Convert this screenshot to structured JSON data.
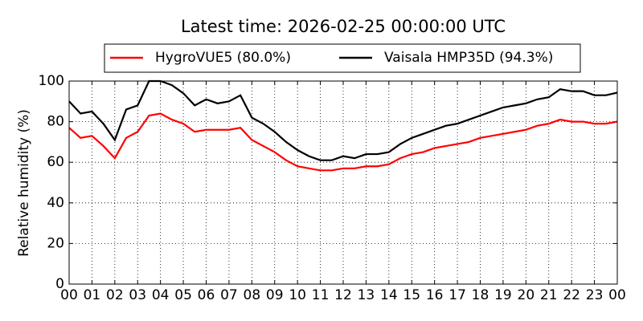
{
  "chart_data": {
    "type": "line",
    "title": "Latest time: 2026-02-25 00:00:00 UTC",
    "ylabel": "Relative humidity (%)",
    "x": [
      0,
      0.5,
      1,
      1.5,
      2,
      2.5,
      3,
      3.5,
      4,
      4.5,
      5,
      5.5,
      6,
      6.5,
      7,
      7.5,
      8,
      8.5,
      9,
      9.5,
      10,
      10.5,
      11,
      11.5,
      12,
      12.5,
      13,
      13.5,
      14,
      14.5,
      15,
      15.5,
      16,
      16.5,
      17,
      17.5,
      18,
      18.5,
      19,
      19.5,
      20,
      20.5,
      21,
      21.5,
      22,
      22.5,
      23,
      23.5,
      24
    ],
    "series": [
      {
        "name": "HygroVUE5 (80.0%)",
        "color": "#ff0000",
        "values": [
          77,
          72,
          73,
          68,
          62,
          72,
          75,
          83,
          84,
          81,
          79,
          75,
          76,
          76,
          76,
          77,
          71,
          68,
          65,
          61,
          58,
          57,
          56,
          56,
          57,
          57,
          58,
          58,
          59,
          62,
          64,
          65,
          67,
          68,
          69,
          70,
          72,
          73,
          74,
          75,
          76,
          78,
          79,
          81,
          80,
          80,
          79,
          79,
          80
        ]
      },
      {
        "name": "Vaisala HMP35D (94.3%)",
        "color": "#000000",
        "values": [
          90,
          84,
          85,
          79,
          71,
          86,
          88,
          100,
          100,
          98,
          94,
          88,
          91,
          89,
          90,
          93,
          82,
          79,
          75,
          70,
          66,
          63,
          61,
          61,
          63,
          62,
          64,
          64,
          65,
          69,
          72,
          74,
          76,
          78,
          79,
          81,
          83,
          85,
          87,
          88,
          89,
          91,
          92,
          96,
          95,
          95,
          93,
          93,
          94.3
        ]
      }
    ],
    "xlim": [
      0,
      24
    ],
    "xticks": [
      {
        "value": 0,
        "label": "00"
      },
      {
        "value": 1,
        "label": "01"
      },
      {
        "value": 2,
        "label": "02"
      },
      {
        "value": 3,
        "label": "03"
      },
      {
        "value": 4,
        "label": "04"
      },
      {
        "value": 5,
        "label": "05"
      },
      {
        "value": 6,
        "label": "06"
      },
      {
        "value": 7,
        "label": "07"
      },
      {
        "value": 8,
        "label": "08"
      },
      {
        "value": 9,
        "label": "09"
      },
      {
        "value": 10,
        "label": "10"
      },
      {
        "value": 11,
        "label": "11"
      },
      {
        "value": 12,
        "label": "12"
      },
      {
        "value": 13,
        "label": "13"
      },
      {
        "value": 14,
        "label": "14"
      },
      {
        "value": 15,
        "label": "15"
      },
      {
        "value": 16,
        "label": "16"
      },
      {
        "value": 17,
        "label": "17"
      },
      {
        "value": 18,
        "label": "18"
      },
      {
        "value": 19,
        "label": "19"
      },
      {
        "value": 20,
        "label": "20"
      },
      {
        "value": 21,
        "label": "21"
      },
      {
        "value": 22,
        "label": "22"
      },
      {
        "value": 23,
        "label": "23"
      },
      {
        "value": 24,
        "label": "00"
      }
    ],
    "ylim": [
      0,
      100
    ],
    "yticks": [
      0,
      20,
      40,
      60,
      80,
      100
    ],
    "grid": true,
    "legend": "top"
  }
}
